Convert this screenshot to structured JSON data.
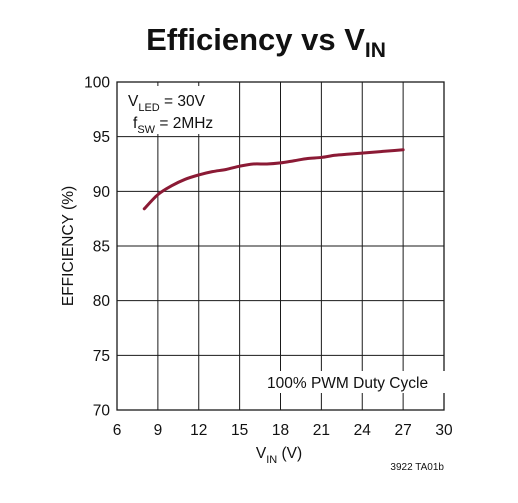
{
  "chart_data": {
    "type": "line",
    "title": {
      "main": "Efficiency vs V",
      "sub": "IN"
    },
    "xlabel": {
      "main": "V",
      "sub": "IN",
      "rest": " (V)"
    },
    "ylabel": "EFFICIENCY (%)",
    "xlim": [
      6,
      30
    ],
    "ylim": [
      70,
      100
    ],
    "x_ticks": [
      "6",
      "9",
      "12",
      "15",
      "18",
      "21",
      "24",
      "27",
      "30"
    ],
    "y_ticks": [
      "70",
      "75",
      "80",
      "85",
      "90",
      "95",
      "100"
    ],
    "grid": true,
    "line_color": "#8b1a35",
    "series": [
      {
        "x": [
          8.0,
          9.0,
          10.0,
          11.0,
          12.0,
          13.0,
          14.0,
          15.0,
          16.0,
          17.0,
          18.0,
          19.0,
          20.0,
          21.0,
          22.0,
          23.0,
          24.0,
          25.0,
          26.0,
          27.0
        ],
        "y": [
          88.4,
          89.7,
          90.5,
          91.1,
          91.5,
          91.8,
          92.0,
          92.3,
          92.5,
          92.5,
          92.6,
          92.8,
          93.0,
          93.1,
          93.3,
          93.4,
          93.5,
          93.6,
          93.7,
          93.8
        ]
      }
    ],
    "annotations": {
      "vled": {
        "main": "V",
        "sub": "LED",
        "rest": " = 30V"
      },
      "fsw": {
        "main": "f",
        "sub": "SW",
        "rest": " = 2MHz"
      },
      "duty": "100% PWM Duty Cycle",
      "code": "3922 TA01b"
    }
  }
}
